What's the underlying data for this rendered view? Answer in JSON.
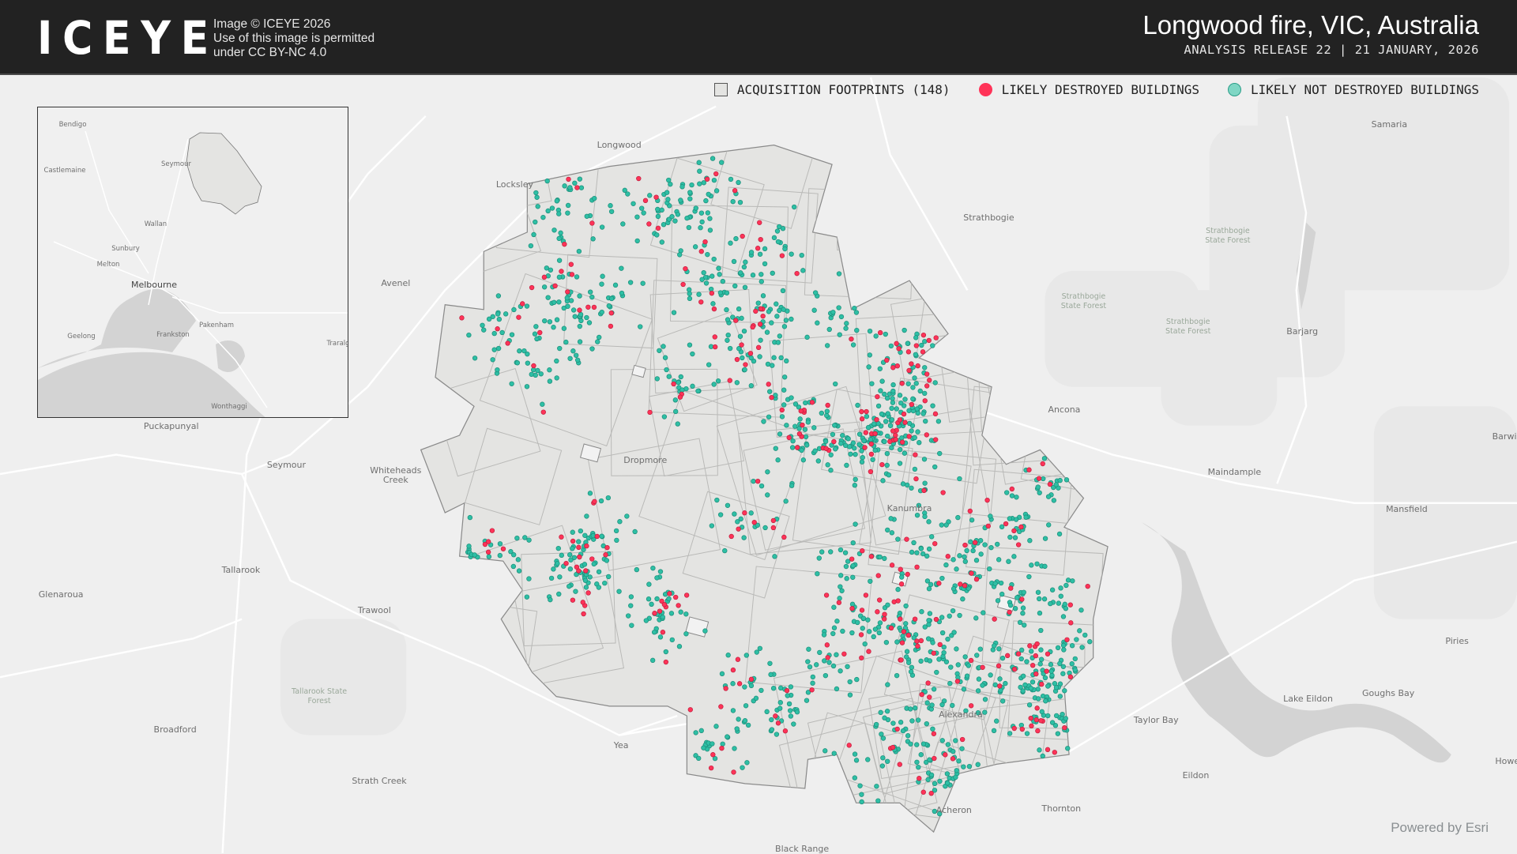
{
  "header": {
    "logo": "ICEYE",
    "copyright_lines": [
      "Image © ICEYE 2026",
      "Use of this image is permitted",
      "under CC BY-NC 4.0"
    ],
    "title_main": "Longwood fire,",
    "title_region": "VIC, Australia",
    "subtitle": "ANALYSIS RELEASE 22 | 21 JANUARY, 2026"
  },
  "legend": {
    "footprints": "ACQUISITION FOOTPRINTS (148)",
    "destroyed": "LIKELY DESTROYED BUILDINGS",
    "not_destroyed": "LIKELY NOT DESTROYED BUILDINGS"
  },
  "colors": {
    "destroyed": "#ff3358",
    "not_destroyed": "#2ebfa5",
    "footprint_fill": "#e4e4e2",
    "footprint_stroke": "#7a7a7a",
    "header_bg": "#222222",
    "water": "#d3d3d3"
  },
  "places": [
    "Longwood",
    "Locksley",
    "Strathbogie",
    "Avenel",
    "Strathbogie State Forest",
    "Strathbogie State Forest",
    "Strathbogie State Forest",
    "Barjarg",
    "Samaria",
    "Ancona",
    "Puckapunyal",
    "Seymour",
    "Whiteheads Creek",
    "Dropmore",
    "Kanumbra",
    "Maindample",
    "Mansfield",
    "Barwi",
    "Tallarook",
    "Glenaroua",
    "Trawool",
    "Tallarook State Forest",
    "Piries",
    "Lake Eildon",
    "Goughs Bay",
    "Taylor Bay",
    "Alexandra",
    "Broadford",
    "Yea",
    "Eildon",
    "Strath Creek",
    "Thornton",
    "Acheron",
    "Howe",
    "Black Range"
  ],
  "inset_places": [
    "Bendigo",
    "Castlemaine",
    "Seymour",
    "Wallan",
    "Sunbury",
    "Melton",
    "Melbourne",
    "Pakenham",
    "Geelong",
    "Frankston",
    "Traralg",
    "Wonthaggi"
  ],
  "attribution": "Powered by Esri"
}
